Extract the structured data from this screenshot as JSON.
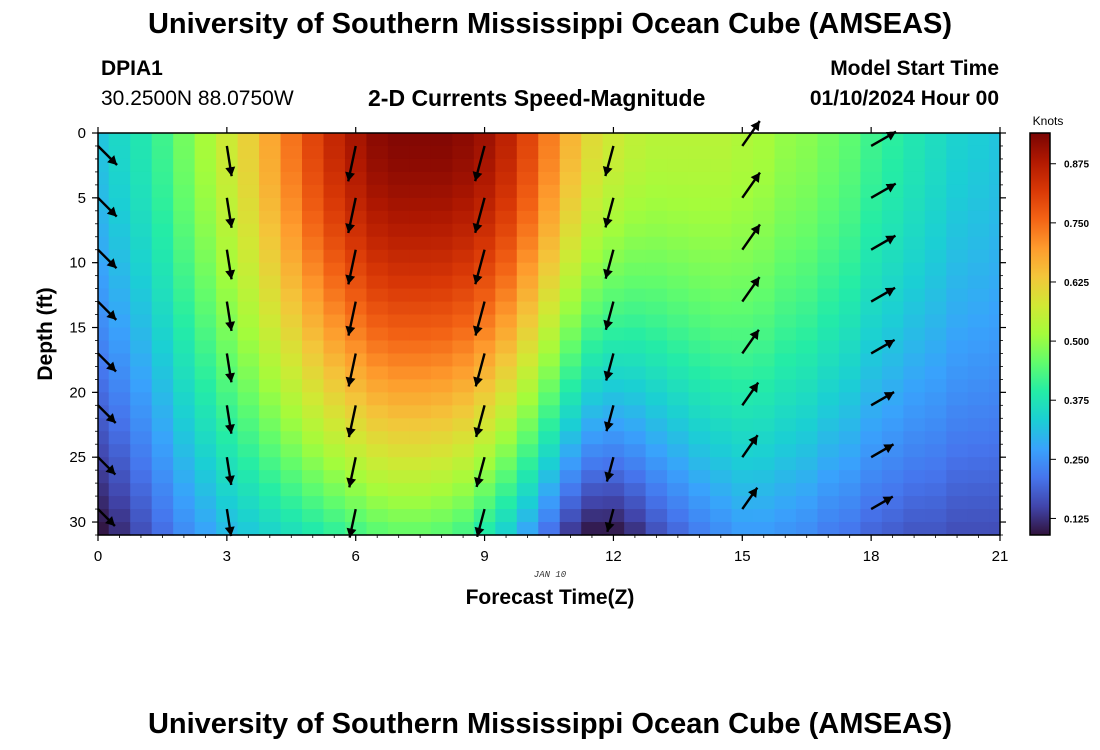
{
  "header": {
    "title": "University of Southern Mississippi Ocean Cube (AMSEAS)",
    "station": "DPIA1",
    "coords": "30.2500N  88.0750W",
    "plot_title": "2-D Currents Speed-Magnitude",
    "model_start_label": "Model Start Time",
    "model_start_value": "01/10/2024 Hour 00"
  },
  "footer": {
    "title": "University of Southern Mississippi Ocean Cube (AMSEAS)"
  },
  "colors": {
    "colormap": [
      "#30123b",
      "#4145ab",
      "#4675ed",
      "#39a2fc",
      "#1bcfd4",
      "#24eca6",
      "#61fc6c",
      "#a4fc3b",
      "#d1e834",
      "#f3c63a",
      "#fe9b2d",
      "#f36315",
      "#d93806",
      "#b11901",
      "#7a0403"
    ]
  },
  "chart_data": {
    "type": "heatmap",
    "title": "2-D Currents Speed-Magnitude",
    "xlabel": "Forecast Time(Z)",
    "ylabel": "Depth (ft)",
    "date_label": "JAN 10",
    "x_ticks": [
      0,
      3,
      6,
      9,
      12,
      15,
      18,
      21
    ],
    "y_ticks": [
      0,
      5,
      10,
      15,
      20,
      25,
      30
    ],
    "xlim": [
      0,
      21
    ],
    "ylim": [
      0,
      31
    ],
    "y_inverted": true,
    "colorbar": {
      "label": "Knots",
      "ticks": [
        "0.125",
        "0.250",
        "0.375",
        "0.500",
        "0.625",
        "0.750",
        "0.875"
      ],
      "range": [
        0.09,
        0.94
      ]
    },
    "hours": [
      0,
      0.5,
      1,
      1.5,
      2,
      2.5,
      3,
      3.5,
      4,
      4.5,
      5,
      5.5,
      6,
      6.5,
      7,
      7.5,
      8,
      8.5,
      9,
      9.5,
      10,
      10.5,
      11,
      11.5,
      12,
      12.5,
      13,
      13.5,
      14,
      14.5,
      15,
      15.5,
      16,
      16.5,
      17,
      17.5,
      18,
      18.5,
      19,
      19.5,
      20,
      20.5,
      21
    ],
    "surface_speed": [
      0.32,
      0.35,
      0.38,
      0.42,
      0.47,
      0.52,
      0.57,
      0.62,
      0.68,
      0.74,
      0.8,
      0.85,
      0.89,
      0.92,
      0.93,
      0.93,
      0.93,
      0.92,
      0.9,
      0.86,
      0.8,
      0.73,
      0.66,
      0.6,
      0.57,
      0.55,
      0.54,
      0.54,
      0.54,
      0.54,
      0.53,
      0.52,
      0.5,
      0.49,
      0.47,
      0.45,
      0.42,
      0.4,
      0.38,
      0.36,
      0.34,
      0.33,
      0.32
    ],
    "bottom_speed": [
      0.09,
      0.12,
      0.16,
      0.2,
      0.24,
      0.27,
      0.3,
      0.32,
      0.34,
      0.36,
      0.38,
      0.4,
      0.42,
      0.44,
      0.45,
      0.45,
      0.44,
      0.42,
      0.38,
      0.33,
      0.27,
      0.2,
      0.13,
      0.09,
      0.09,
      0.12,
      0.16,
      0.19,
      0.22,
      0.24,
      0.26,
      0.26,
      0.25,
      0.24,
      0.22,
      0.21,
      0.19,
      0.18,
      0.17,
      0.17,
      0.16,
      0.16,
      0.16
    ],
    "vectors": [
      {
        "hour": 0,
        "dir_deg": 135,
        "speed": [
          0.31,
          0.28,
          0.26,
          0.24,
          0.22,
          0.19,
          0.16,
          0.12
        ]
      },
      {
        "hour": 3,
        "dir_deg": 171,
        "speed": [
          0.54,
          0.52,
          0.5,
          0.48,
          0.45,
          0.42,
          0.38,
          0.33
        ]
      },
      {
        "hour": 6,
        "dir_deg": 192,
        "speed": [
          0.89,
          0.87,
          0.84,
          0.8,
          0.74,
          0.66,
          0.55,
          0.45
        ]
      },
      {
        "hour": 9,
        "dir_deg": 195,
        "speed": [
          0.9,
          0.89,
          0.86,
          0.82,
          0.76,
          0.67,
          0.55,
          0.42
        ]
      },
      {
        "hour": 12,
        "dir_deg": 195,
        "speed": [
          0.57,
          0.54,
          0.5,
          0.45,
          0.38,
          0.3,
          0.2,
          0.1
        ]
      },
      {
        "hour": 15,
        "dir_deg": 35,
        "speed": [
          0.53,
          0.55,
          0.55,
          0.5,
          0.43,
          0.36,
          0.3,
          0.26
        ]
      },
      {
        "hour": 18,
        "dir_deg": 60,
        "speed": [
          0.42,
          0.4,
          0.38,
          0.35,
          0.32,
          0.28,
          0.24,
          0.19
        ]
      }
    ],
    "vector_depths": [
      1,
      5,
      9,
      13,
      17,
      21,
      25,
      29
    ]
  }
}
